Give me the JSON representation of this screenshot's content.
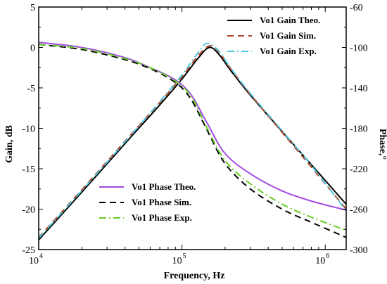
{
  "chart_data": {
    "type": "line",
    "title": "",
    "xlabel": "Frequency, Hz",
    "ylabel_left": "Gain, dB",
    "ylabel_right": "Phase,°",
    "x_scale": "log",
    "xlim": [
      10000,
      1400000
    ],
    "ylim_left": [
      -25,
      5
    ],
    "ylim_right": [
      -300,
      -60
    ],
    "x_ticks": [
      {
        "base": "10",
        "exp": "4"
      },
      {
        "base": "10",
        "exp": "5"
      },
      {
        "base": "10",
        "exp": "6"
      }
    ],
    "y_ticks_left": [
      "5",
      "0",
      "-5",
      "-10",
      "-15",
      "-20",
      "-25"
    ],
    "y_ticks_right": [
      "-60",
      "-100",
      "-140",
      "-180",
      "-220",
      "-260",
      "-300"
    ],
    "grid": false,
    "legend_top_right": [
      "Vo1 Gain Theo.",
      "Vo1 Gain Sim.",
      "Vo1 Gain Exp."
    ],
    "legend_bottom_left": [
      "Vo1 Phase Theo.",
      "Vo1 Phase Sim.",
      "Vo1 Phase Exp."
    ],
    "series": [
      {
        "name": "Vo1 Gain Theo.",
        "axis": "left",
        "color": "#000000",
        "dash": "solid",
        "x": [
          10000,
          20000,
          40000,
          70000,
          100000,
          130000,
          155000,
          180000,
          220000,
          300000,
          500000,
          800000,
          1400000
        ],
        "y": [
          -23.8,
          -17.9,
          -11.9,
          -7.1,
          -3.9,
          -1.3,
          0.0,
          -0.8,
          -2.9,
          -5.9,
          -10.4,
          -14.5,
          -19.4
        ]
      },
      {
        "name": "Vo1 Gain Sim.",
        "axis": "left",
        "color": "#b5462a",
        "dash": "dashed",
        "x": [
          10000,
          20000,
          40000,
          70000,
          100000,
          130000,
          155000,
          180000,
          220000,
          300000,
          500000,
          800000,
          1400000
        ],
        "y": [
          -23.5,
          -17.6,
          -11.6,
          -6.8,
          -3.6,
          -1.0,
          0.2,
          -0.5,
          -2.7,
          -5.8,
          -10.5,
          -14.8,
          -20.0
        ]
      },
      {
        "name": "Vo1 Gain Exp.",
        "axis": "left",
        "color": "#4ec8e0",
        "dash": "dashdot",
        "x": [
          10000,
          20000,
          40000,
          70000,
          100000,
          130000,
          150000,
          180000,
          220000,
          300000,
          500000,
          800000,
          1400000
        ],
        "y": [
          -23.6,
          -17.7,
          -11.7,
          -6.7,
          -3.4,
          -0.6,
          0.5,
          -0.4,
          -2.6,
          -5.7,
          -10.3,
          -14.6,
          -20.2
        ]
      },
      {
        "name": "Vo1 Phase Theo.",
        "axis": "right",
        "color": "#a14de0",
        "dash": "solid",
        "x": [
          10000,
          20000,
          40000,
          60000,
          80000,
          100000,
          120000,
          150000,
          200000,
          300000,
          500000,
          800000,
          1400000
        ],
        "y": [
          -95,
          -100,
          -110,
          -120,
          -128,
          -137,
          -150,
          -175,
          -205,
          -225,
          -242,
          -252,
          -261
        ]
      },
      {
        "name": "Vo1 Phase Sim.",
        "axis": "right",
        "color": "#000000",
        "dash": "dashed",
        "x": [
          10000,
          20000,
          40000,
          60000,
          80000,
          100000,
          120000,
          150000,
          200000,
          300000,
          500000,
          800000,
          1400000
        ],
        "y": [
          -97,
          -102,
          -112,
          -121,
          -130,
          -140,
          -155,
          -182,
          -215,
          -240,
          -260,
          -273,
          -288
        ]
      },
      {
        "name": "Vo1 Phase Exp.",
        "axis": "right",
        "color": "#66cc22",
        "dash": "dashdot",
        "x": [
          10000,
          20000,
          40000,
          60000,
          80000,
          100000,
          120000,
          150000,
          200000,
          300000,
          500000,
          800000,
          1400000
        ],
        "y": [
          -97,
          -101,
          -111,
          -120,
          -129,
          -138,
          -152,
          -180,
          -212,
          -235,
          -255,
          -268,
          -281
        ]
      }
    ]
  }
}
